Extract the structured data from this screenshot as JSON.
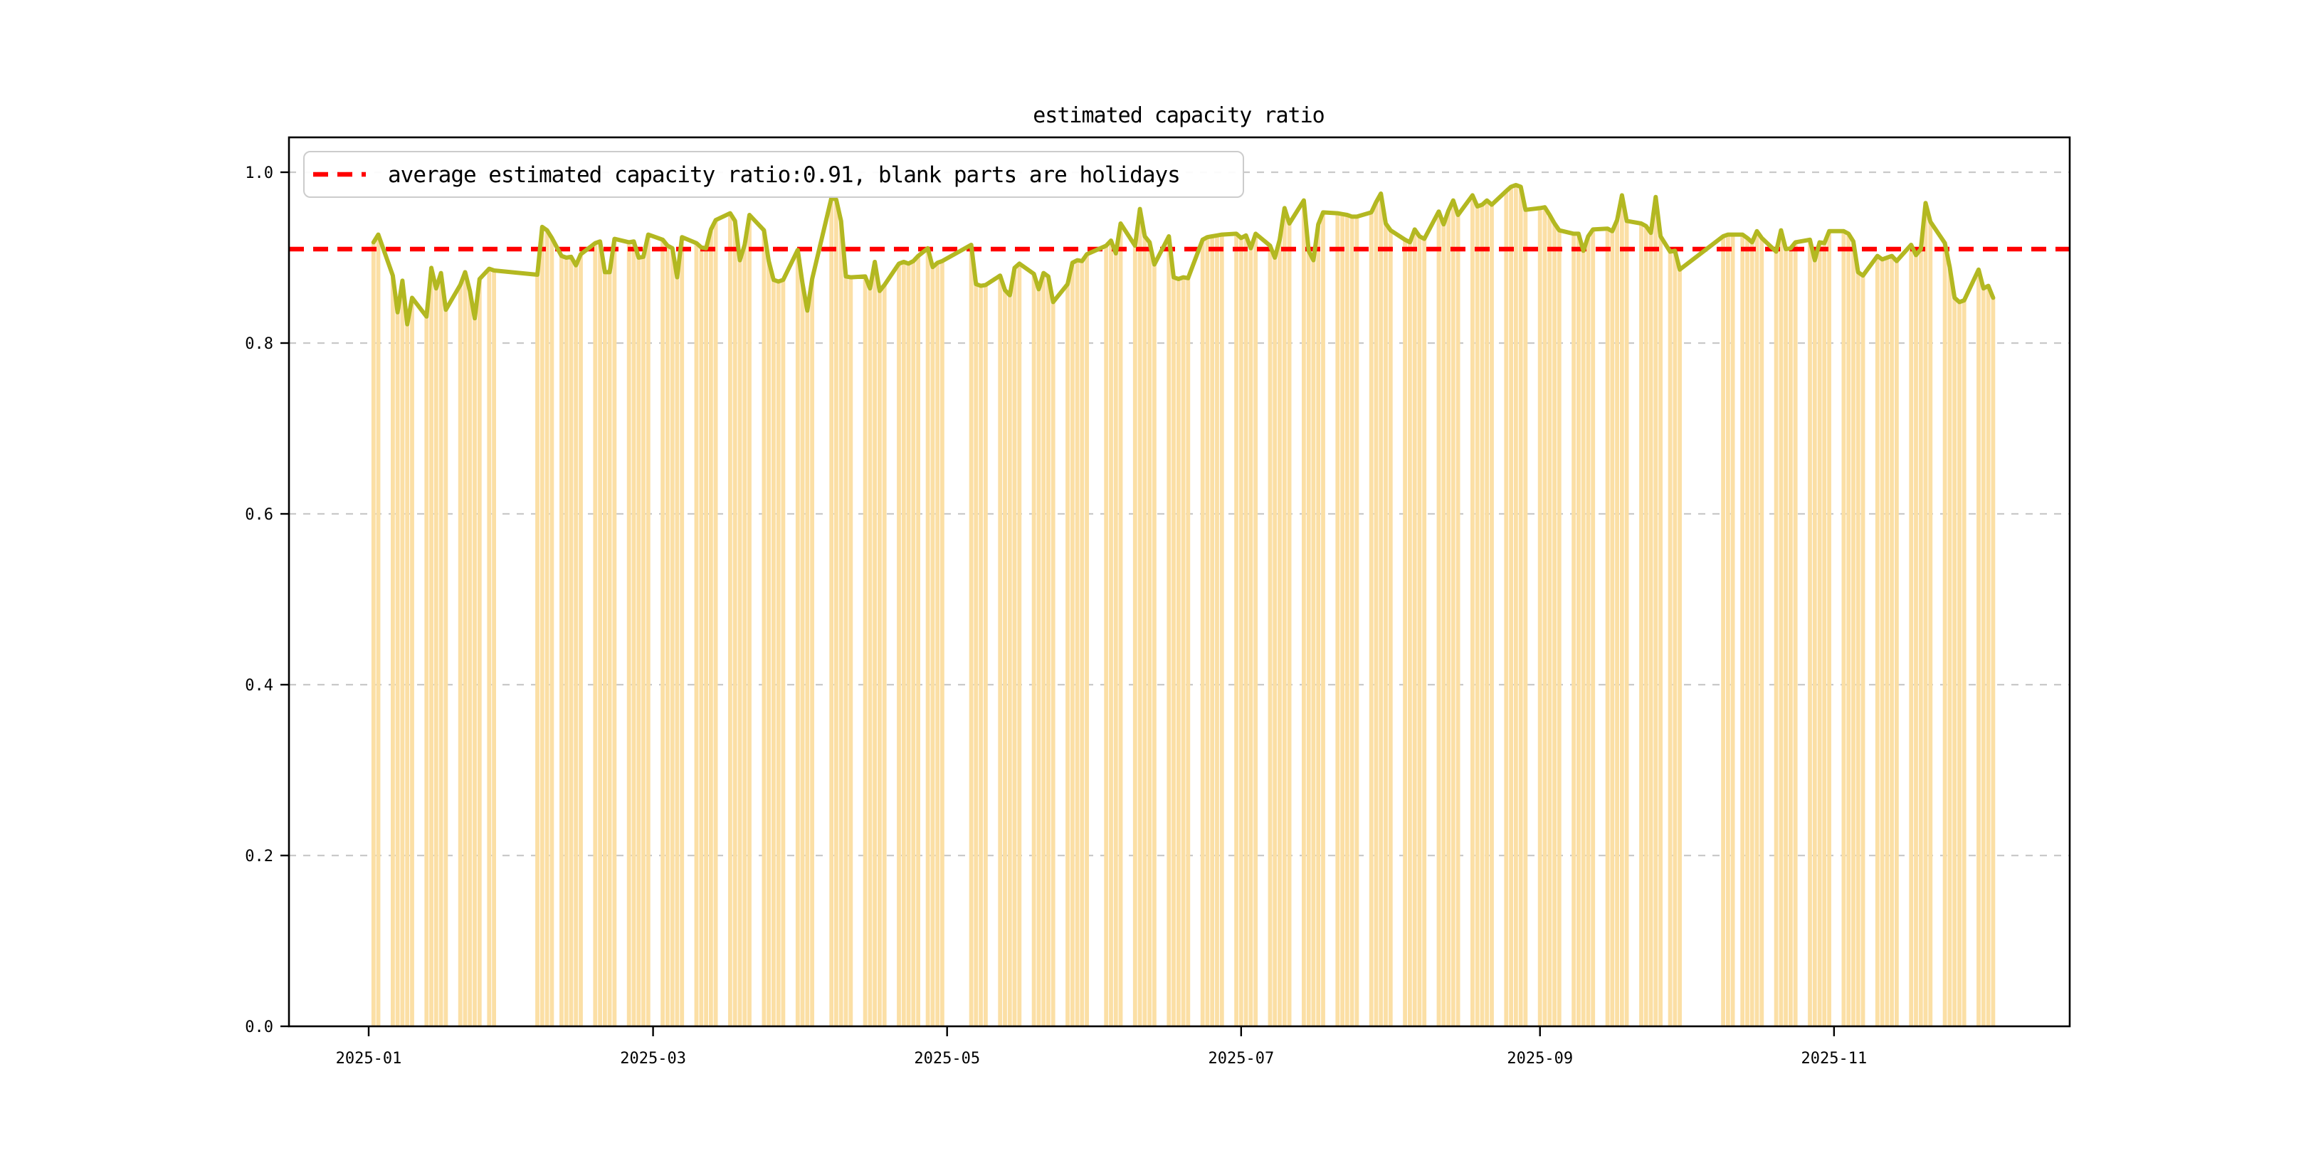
{
  "figure": {
    "title": "estimated capacity ratio"
  },
  "chart_data": {
    "type": "bar+line",
    "title": "estimated capacity ratio",
    "xlabel": "",
    "ylabel": "",
    "grid": "horizontal dashed",
    "legend_position": "upper left",
    "legend": {
      "label": "average estimated capacity ratio:0.91, blank parts are holidays",
      "line_color": "#FF0000",
      "line_style": "dashed"
    },
    "average_line": {
      "value": 0.91,
      "color": "#FF0000",
      "style": "dashed"
    },
    "ylim": [
      0.0,
      1.0417
    ],
    "yticks": [
      {
        "value": 0.0,
        "label": "0.0"
      },
      {
        "value": 0.2,
        "label": "0.2"
      },
      {
        "value": 0.4,
        "label": "0.4"
      },
      {
        "value": 0.6,
        "label": "0.6"
      },
      {
        "value": 0.8,
        "label": "0.8"
      },
      {
        "value": 1.0,
        "label": "1.0"
      }
    ],
    "xticks": [
      {
        "date": "2025-01-01",
        "label": "2025-01"
      },
      {
        "date": "2025-03-01",
        "label": "2025-03"
      },
      {
        "date": "2025-05-01",
        "label": "2025-05"
      },
      {
        "date": "2025-07-01",
        "label": "2025-07"
      },
      {
        "date": "2025-09-01",
        "label": "2025-09"
      },
      {
        "date": "2025-11-01",
        "label": "2025-11"
      }
    ],
    "colors": {
      "bar": "#FBDFA5",
      "line": "#B3B821",
      "average": "#FF0000",
      "grid": "#C9C9C9"
    },
    "holiday_blanks": [
      "2025-01-01",
      "2025-01-28..2025-02-04",
      "2025-04-04..2025-04-06",
      "2025-05-01..2025-05-05",
      "2025-05-31..2025-06-02",
      "2025-10-01..2025-10-08",
      "weekends"
    ],
    "days": [
      [
        "2025-01-02",
        0.918
      ],
      [
        "2025-01-03",
        0.927
      ],
      [
        "2025-01-06",
        0.879
      ],
      [
        "2025-01-07",
        0.836
      ],
      [
        "2025-01-08",
        0.873
      ],
      [
        "2025-01-09",
        0.822
      ],
      [
        "2025-01-10",
        0.853
      ],
      [
        "2025-01-13",
        0.831
      ],
      [
        "2025-01-14",
        0.888
      ],
      [
        "2025-01-15",
        0.864
      ],
      [
        "2025-01-16",
        0.882
      ],
      [
        "2025-01-17",
        0.839
      ],
      [
        "2025-01-20",
        0.868
      ],
      [
        "2025-01-21",
        0.883
      ],
      [
        "2025-01-22",
        0.861
      ],
      [
        "2025-01-23",
        0.829
      ],
      [
        "2025-01-24",
        0.875
      ],
      [
        "2025-01-26",
        0.887
      ],
      [
        "2025-01-27",
        0.885
      ],
      [
        "2025-02-05",
        0.88
      ],
      [
        "2025-02-06",
        0.936
      ],
      [
        "2025-02-07",
        0.932
      ],
      [
        "2025-02-08",
        0.923
      ],
      [
        "2025-02-10",
        0.902
      ],
      [
        "2025-02-11",
        0.9
      ],
      [
        "2025-02-12",
        0.901
      ],
      [
        "2025-02-13",
        0.891
      ],
      [
        "2025-02-14",
        0.904
      ],
      [
        "2025-02-17",
        0.917
      ],
      [
        "2025-02-18",
        0.919
      ],
      [
        "2025-02-19",
        0.883
      ],
      [
        "2025-02-20",
        0.883
      ],
      [
        "2025-02-21",
        0.922
      ],
      [
        "2025-02-24",
        0.918
      ],
      [
        "2025-02-25",
        0.919
      ],
      [
        "2025-02-26",
        0.9
      ],
      [
        "2025-02-27",
        0.901
      ],
      [
        "2025-02-28",
        0.927
      ],
      [
        "2025-03-03",
        0.921
      ],
      [
        "2025-03-04",
        0.914
      ],
      [
        "2025-03-05",
        0.911
      ],
      [
        "2025-03-06",
        0.877
      ],
      [
        "2025-03-07",
        0.924
      ],
      [
        "2025-03-10",
        0.917
      ],
      [
        "2025-03-11",
        0.912
      ],
      [
        "2025-03-12",
        0.911
      ],
      [
        "2025-03-13",
        0.933
      ],
      [
        "2025-03-14",
        0.944
      ],
      [
        "2025-03-17",
        0.952
      ],
      [
        "2025-03-18",
        0.943
      ],
      [
        "2025-03-19",
        0.897
      ],
      [
        "2025-03-20",
        0.915
      ],
      [
        "2025-03-21",
        0.95
      ],
      [
        "2025-03-24",
        0.932
      ],
      [
        "2025-03-25",
        0.896
      ],
      [
        "2025-03-26",
        0.874
      ],
      [
        "2025-03-27",
        0.872
      ],
      [
        "2025-03-28",
        0.874
      ],
      [
        "2025-03-31",
        0.909
      ],
      [
        "2025-04-01",
        0.87
      ],
      [
        "2025-04-02",
        0.838
      ],
      [
        "2025-04-03",
        0.875
      ],
      [
        "2025-04-07",
        0.97
      ],
      [
        "2025-04-08",
        0.968
      ],
      [
        "2025-04-09",
        0.943
      ],
      [
        "2025-04-10",
        0.878
      ],
      [
        "2025-04-11",
        0.877
      ],
      [
        "2025-04-14",
        0.878
      ],
      [
        "2025-04-15",
        0.864
      ],
      [
        "2025-04-16",
        0.895
      ],
      [
        "2025-04-17",
        0.861
      ],
      [
        "2025-04-18",
        0.868
      ],
      [
        "2025-04-21",
        0.893
      ],
      [
        "2025-04-22",
        0.895
      ],
      [
        "2025-04-23",
        0.893
      ],
      [
        "2025-04-24",
        0.896
      ],
      [
        "2025-04-25",
        0.902
      ],
      [
        "2025-04-27",
        0.911
      ],
      [
        "2025-04-28",
        0.889
      ],
      [
        "2025-04-29",
        0.894
      ],
      [
        "2025-04-30",
        0.896
      ],
      [
        "2025-05-06",
        0.915
      ],
      [
        "2025-05-07",
        0.869
      ],
      [
        "2025-05-08",
        0.867
      ],
      [
        "2025-05-09",
        0.868
      ],
      [
        "2025-05-12",
        0.879
      ],
      [
        "2025-05-13",
        0.862
      ],
      [
        "2025-05-14",
        0.856
      ],
      [
        "2025-05-15",
        0.888
      ],
      [
        "2025-05-16",
        0.893
      ],
      [
        "2025-05-19",
        0.881
      ],
      [
        "2025-05-20",
        0.863
      ],
      [
        "2025-05-21",
        0.882
      ],
      [
        "2025-05-22",
        0.878
      ],
      [
        "2025-05-23",
        0.848
      ],
      [
        "2025-05-26",
        0.869
      ],
      [
        "2025-05-27",
        0.894
      ],
      [
        "2025-05-28",
        0.897
      ],
      [
        "2025-05-29",
        0.896
      ],
      [
        "2025-05-30",
        0.904
      ],
      [
        "2025-06-03",
        0.914
      ],
      [
        "2025-06-04",
        0.92
      ],
      [
        "2025-06-05",
        0.905
      ],
      [
        "2025-06-06",
        0.94
      ],
      [
        "2025-06-09",
        0.914
      ],
      [
        "2025-06-10",
        0.957
      ],
      [
        "2025-06-11",
        0.925
      ],
      [
        "2025-06-12",
        0.918
      ],
      [
        "2025-06-13",
        0.892
      ],
      [
        "2025-06-16",
        0.925
      ],
      [
        "2025-06-17",
        0.877
      ],
      [
        "2025-06-18",
        0.875
      ],
      [
        "2025-06-19",
        0.877
      ],
      [
        "2025-06-20",
        0.876
      ],
      [
        "2025-06-23",
        0.921
      ],
      [
        "2025-06-24",
        0.924
      ],
      [
        "2025-06-25",
        0.925
      ],
      [
        "2025-06-26",
        0.926
      ],
      [
        "2025-06-27",
        0.927
      ],
      [
        "2025-06-30",
        0.928
      ],
      [
        "2025-07-01",
        0.923
      ],
      [
        "2025-07-02",
        0.926
      ],
      [
        "2025-07-03",
        0.911
      ],
      [
        "2025-07-04",
        0.928
      ],
      [
        "2025-07-07",
        0.914
      ],
      [
        "2025-07-08",
        0.9
      ],
      [
        "2025-07-09",
        0.921
      ],
      [
        "2025-07-10",
        0.958
      ],
      [
        "2025-07-11",
        0.94
      ],
      [
        "2025-07-14",
        0.967
      ],
      [
        "2025-07-15",
        0.908
      ],
      [
        "2025-07-16",
        0.897
      ],
      [
        "2025-07-17",
        0.939
      ],
      [
        "2025-07-18",
        0.953
      ],
      [
        "2025-07-21",
        0.952
      ],
      [
        "2025-07-22",
        0.951
      ],
      [
        "2025-07-23",
        0.95
      ],
      [
        "2025-07-24",
        0.948
      ],
      [
        "2025-07-25",
        0.948
      ],
      [
        "2025-07-28",
        0.953
      ],
      [
        "2025-07-29",
        0.965
      ],
      [
        "2025-07-30",
        0.975
      ],
      [
        "2025-07-31",
        0.94
      ],
      [
        "2025-08-01",
        0.932
      ],
      [
        "2025-08-04",
        0.921
      ],
      [
        "2025-08-05",
        0.918
      ],
      [
        "2025-08-06",
        0.933
      ],
      [
        "2025-08-07",
        0.925
      ],
      [
        "2025-08-08",
        0.922
      ],
      [
        "2025-08-11",
        0.954
      ],
      [
        "2025-08-12",
        0.939
      ],
      [
        "2025-08-13",
        0.955
      ],
      [
        "2025-08-14",
        0.967
      ],
      [
        "2025-08-15",
        0.95
      ],
      [
        "2025-08-18",
        0.973
      ],
      [
        "2025-08-19",
        0.96
      ],
      [
        "2025-08-20",
        0.962
      ],
      [
        "2025-08-21",
        0.967
      ],
      [
        "2025-08-22",
        0.962
      ],
      [
        "2025-08-25",
        0.978
      ],
      [
        "2025-08-26",
        0.983
      ],
      [
        "2025-08-27",
        0.985
      ],
      [
        "2025-08-28",
        0.983
      ],
      [
        "2025-08-29",
        0.956
      ],
      [
        "2025-09-01",
        0.958
      ],
      [
        "2025-09-02",
        0.959
      ],
      [
        "2025-09-03",
        0.95
      ],
      [
        "2025-09-04",
        0.94
      ],
      [
        "2025-09-05",
        0.932
      ],
      [
        "2025-09-08",
        0.928
      ],
      [
        "2025-09-09",
        0.928
      ],
      [
        "2025-09-10",
        0.908
      ],
      [
        "2025-09-11",
        0.925
      ],
      [
        "2025-09-12",
        0.933
      ],
      [
        "2025-09-15",
        0.934
      ],
      [
        "2025-09-16",
        0.931
      ],
      [
        "2025-09-17",
        0.944
      ],
      [
        "2025-09-18",
        0.973
      ],
      [
        "2025-09-19",
        0.943
      ],
      [
        "2025-09-22",
        0.94
      ],
      [
        "2025-09-23",
        0.937
      ],
      [
        "2025-09-24",
        0.929
      ],
      [
        "2025-09-25",
        0.971
      ],
      [
        "2025-09-26",
        0.925
      ],
      [
        "2025-09-28",
        0.907
      ],
      [
        "2025-09-29",
        0.908
      ],
      [
        "2025-09-30",
        0.886
      ],
      [
        "2025-10-09",
        0.925
      ],
      [
        "2025-10-10",
        0.927
      ],
      [
        "2025-10-11",
        0.927
      ],
      [
        "2025-10-13",
        0.927
      ],
      [
        "2025-10-14",
        0.923
      ],
      [
        "2025-10-15",
        0.918
      ],
      [
        "2025-10-16",
        0.931
      ],
      [
        "2025-10-17",
        0.923
      ],
      [
        "2025-10-20",
        0.907
      ],
      [
        "2025-10-21",
        0.932
      ],
      [
        "2025-10-22",
        0.91
      ],
      [
        "2025-10-23",
        0.911
      ],
      [
        "2025-10-24",
        0.918
      ],
      [
        "2025-10-27",
        0.921
      ],
      [
        "2025-10-28",
        0.897
      ],
      [
        "2025-10-29",
        0.918
      ],
      [
        "2025-10-30",
        0.917
      ],
      [
        "2025-10-31",
        0.931
      ],
      [
        "2025-11-03",
        0.931
      ],
      [
        "2025-11-04",
        0.928
      ],
      [
        "2025-11-05",
        0.919
      ],
      [
        "2025-11-06",
        0.883
      ],
      [
        "2025-11-07",
        0.879
      ],
      [
        "2025-11-10",
        0.902
      ],
      [
        "2025-11-11",
        0.898
      ],
      [
        "2025-11-12",
        0.9
      ],
      [
        "2025-11-13",
        0.902
      ],
      [
        "2025-11-14",
        0.896
      ],
      [
        "2025-11-17",
        0.915
      ],
      [
        "2025-11-18",
        0.903
      ],
      [
        "2025-11-19",
        0.91
      ],
      [
        "2025-11-20",
        0.964
      ],
      [
        "2025-11-21",
        0.942
      ],
      [
        "2025-11-24",
        0.917
      ],
      [
        "2025-11-25",
        0.889
      ],
      [
        "2025-11-26",
        0.853
      ],
      [
        "2025-11-27",
        0.848
      ],
      [
        "2025-11-28",
        0.85
      ],
      [
        "2025-12-01",
        0.886
      ],
      [
        "2025-12-02",
        0.864
      ],
      [
        "2025-12-03",
        0.867
      ],
      [
        "2025-12-04",
        0.853
      ]
    ]
  }
}
